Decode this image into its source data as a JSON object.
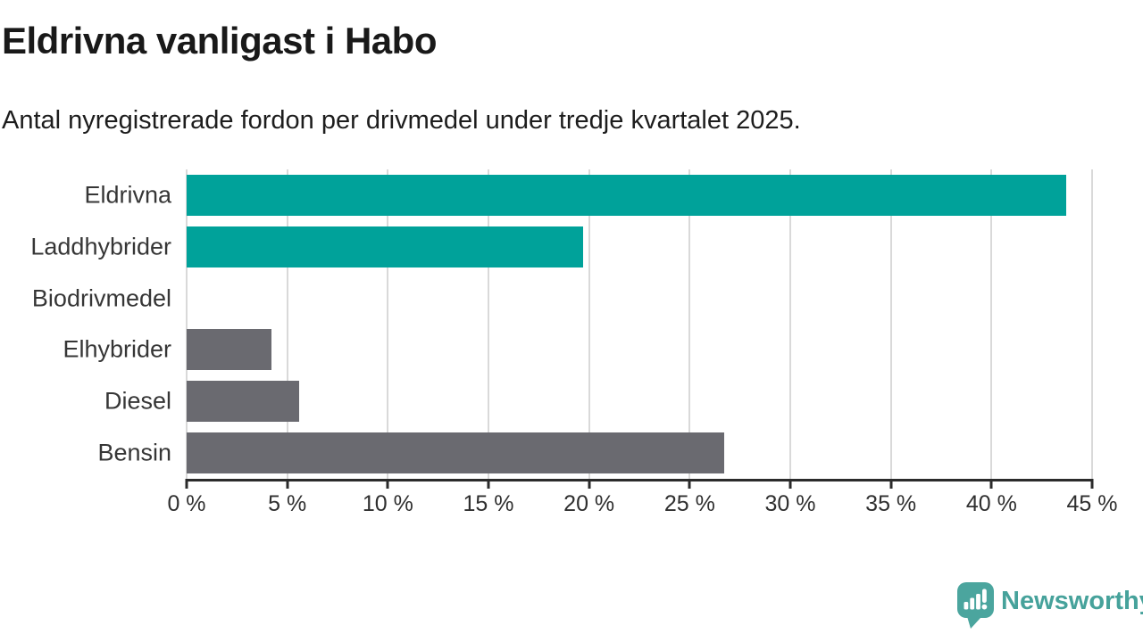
{
  "header": {
    "title": "Eldrivna vanligast i Habo",
    "subtitle": "Antal nyregistrerade fordon per drivmedel under tredje kvartalet 2025."
  },
  "chart_data": {
    "type": "bar",
    "orientation": "horizontal",
    "title": "Eldrivna vanligast i Habo",
    "subtitle": "Antal nyregistrerade fordon per drivmedel under tredje kvartalet 2025.",
    "categories": [
      "Eldrivna",
      "Laddhybrider",
      "Biodrivmedel",
      "Elhybrider",
      "Diesel",
      "Bensin"
    ],
    "values": [
      43.7,
      19.7,
      0,
      4.2,
      5.6,
      26.7
    ],
    "bar_colors": [
      "#00a29a",
      "#00a29a",
      "#6a6a70",
      "#6a6a70",
      "#6a6a70",
      "#6a6a70"
    ],
    "unit": "%",
    "xlabel": "",
    "ylabel": "",
    "xlim": [
      0,
      45
    ],
    "x_tick_values": [
      0,
      5,
      10,
      15,
      20,
      25,
      30,
      35,
      40,
      45
    ],
    "x_tick_labels": [
      "0 %",
      "5 %",
      "10 %",
      "15 %",
      "20 %",
      "25 %",
      "30 %",
      "35 %",
      "40 %",
      "45 %"
    ],
    "grid": "vertical",
    "legend": "none"
  },
  "footer": {
    "logo_text": "Newsworthy",
    "logo_icon": "speech-bubble-bar-chart-exclamation-icon"
  },
  "colors": {
    "accent": "#00a29a",
    "muted_bar": "#6a6a70",
    "grid": "#d9d9d9",
    "axis": "#2b2b2b",
    "title_text": "#191919",
    "label_text": "#363636",
    "logo": "#4ba59e",
    "logo_text": "#46a29b"
  }
}
